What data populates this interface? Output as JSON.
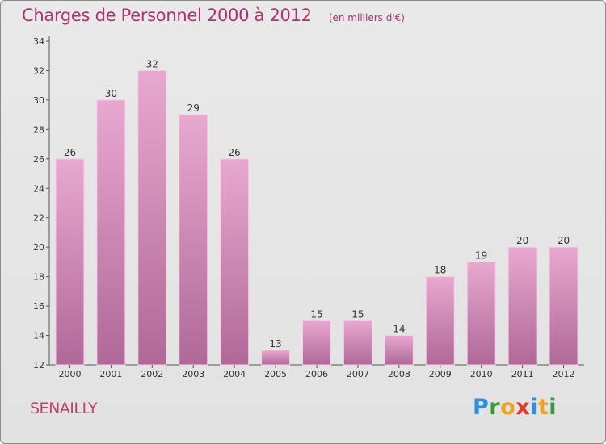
{
  "title": "Charges de Personnel 2000 à 2012",
  "subtitle": "(en milliers d'€)",
  "commune": "SENAILLY",
  "brand": {
    "letters": [
      {
        "char": "P",
        "color": "#2f8fd8"
      },
      {
        "char": "r",
        "color": "#3a9a3a"
      },
      {
        "char": "o",
        "color": "#f0a020"
      },
      {
        "char": "x",
        "color": "#e03a2a"
      },
      {
        "char": "i",
        "color": "#2f8fd8"
      },
      {
        "char": "t",
        "color": "#f0a020"
      },
      {
        "char": "i",
        "color": "#3a9a3a"
      }
    ]
  },
  "colors": {
    "title": "#b03070",
    "bar_top": "#e8a8d0",
    "bar_bottom": "#b06898",
    "bar_edge": "#f5cfe6"
  },
  "chart_data": {
    "type": "bar",
    "title": "Charges de Personnel 2000 à 2012",
    "subtitle": "(en milliers d'€)",
    "categories": [
      "2000",
      "2001",
      "2002",
      "2003",
      "2004",
      "2005",
      "2006",
      "2007",
      "2008",
      "2009",
      "2010",
      "2011",
      "2012"
    ],
    "values": [
      26,
      30,
      32,
      29,
      26,
      13,
      15,
      15,
      14,
      18,
      19,
      20,
      20
    ],
    "ylim": [
      12,
      34
    ],
    "yticks": [
      12,
      14,
      16,
      18,
      20,
      22,
      24,
      26,
      28,
      30,
      32,
      34
    ],
    "grid": false,
    "legend": "none"
  }
}
